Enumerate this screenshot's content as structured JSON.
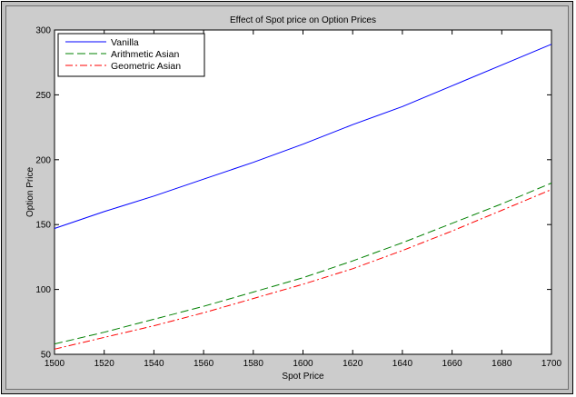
{
  "chart_data": {
    "type": "line",
    "title": "Effect of Spot price on Option Prices",
    "xlabel": "Spot Price",
    "ylabel": "Option Price",
    "xlim": [
      1500,
      1700
    ],
    "ylim": [
      50,
      300
    ],
    "xticks": [
      1500,
      1520,
      1540,
      1560,
      1580,
      1600,
      1620,
      1640,
      1660,
      1680,
      1700
    ],
    "yticks": [
      50,
      100,
      150,
      200,
      250,
      300
    ],
    "grid": false,
    "legend_position": "top-left",
    "x": [
      1500,
      1520,
      1540,
      1560,
      1580,
      1600,
      1620,
      1640,
      1660,
      1680,
      1700
    ],
    "series": [
      {
        "name": "Vanilla",
        "color": "#0000ff",
        "linestyle": "solid",
        "values": [
          147,
          160,
          172,
          185,
          198,
          212,
          227,
          241,
          257,
          273,
          289
        ]
      },
      {
        "name": "Arithmetic Asian",
        "color": "#008000",
        "linestyle": "dashed",
        "values": [
          58,
          67,
          77,
          87,
          98,
          109,
          122,
          136,
          151,
          166,
          182
        ]
      },
      {
        "name": "Geometric Asian",
        "color": "#ff0000",
        "linestyle": "dashdot",
        "values": [
          54,
          63,
          72,
          82,
          93,
          104,
          116,
          130,
          145,
          161,
          177
        ]
      }
    ]
  }
}
